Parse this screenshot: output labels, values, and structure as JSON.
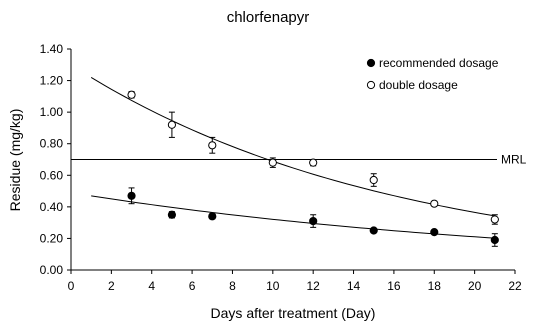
{
  "chart_data": {
    "type": "scatter",
    "title": "chlorfenapyr",
    "xlabel": "Days after treatment (Day)",
    "ylabel": "Residue (mg/kg)",
    "xlim": [
      0,
      22
    ],
    "ylim": [
      0,
      1.4
    ],
    "x_ticks": [
      "0",
      "2",
      "4",
      "6",
      "8",
      "10",
      "12",
      "14",
      "16",
      "18",
      "20",
      "22"
    ],
    "y_ticks": [
      "0.00",
      "0.20",
      "0.40",
      "0.60",
      "0.80",
      "1.00",
      "1.20",
      "1.40"
    ],
    "grid": false,
    "legend_position": "top-right",
    "series": [
      {
        "name": "recommended dosage",
        "marker": "filled-circle",
        "color": "#000000",
        "points": [
          {
            "x": 3,
            "y": 0.47,
            "err": 0.05
          },
          {
            "x": 5,
            "y": 0.35,
            "err": 0.02
          },
          {
            "x": 7,
            "y": 0.34,
            "err": 0.015
          },
          {
            "x": 12,
            "y": 0.31,
            "err": 0.04
          },
          {
            "x": 15,
            "y": 0.25,
            "err": 0.01
          },
          {
            "x": 18,
            "y": 0.24,
            "err": 0.01
          },
          {
            "x": 21,
            "y": 0.19,
            "err": 0.04
          }
        ],
        "trend": {
          "a": 0.49,
          "k": 0.0423,
          "x_from": 1,
          "x_to": 21
        }
      },
      {
        "name": "double dosage",
        "marker": "open-circle",
        "color": "#000000",
        "points": [
          {
            "x": 3,
            "y": 1.11,
            "err": 0.02
          },
          {
            "x": 5,
            "y": 0.92,
            "err": 0.08
          },
          {
            "x": 7,
            "y": 0.79,
            "err": 0.05
          },
          {
            "x": 10,
            "y": 0.68,
            "err": 0.03
          },
          {
            "x": 12,
            "y": 0.68,
            "err": 0.02
          },
          {
            "x": 15,
            "y": 0.57,
            "err": 0.04
          },
          {
            "x": 18,
            "y": 0.42,
            "err": 0.01
          },
          {
            "x": 21,
            "y": 0.32,
            "err": 0.03
          }
        ],
        "trend": {
          "a": 1.3,
          "k": 0.0635,
          "x_from": 1,
          "x_to": 21
        }
      }
    ],
    "reference_line": {
      "label": "MRL",
      "y": 0.7
    }
  }
}
